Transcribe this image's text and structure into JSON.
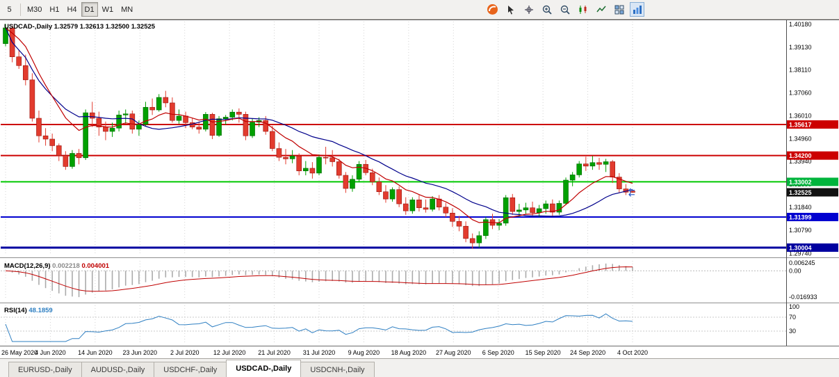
{
  "colors": {
    "up": "#00A000",
    "up_stroke": "#006600",
    "down": "#E23B2E",
    "down_stroke": "#99150F",
    "ma_fast": "#C00000",
    "ma_slow": "#00008B",
    "macd_bar": "#ABABAB",
    "macd_signal": "#C00000",
    "rsi_line": "#2E7FC2",
    "grid": "#D3D3D3",
    "arrow": "#2255CC"
  },
  "toolbar": {
    "timeframes": [
      "5",
      "M30",
      "H1",
      "H4",
      "D1",
      "W1",
      "MN"
    ],
    "active_timeframe": "D1",
    "icons": [
      "logo-icon",
      "cursor-icon",
      "crosshair-icon",
      "zoom-in-icon",
      "zoom-out-icon",
      "candles-chart-icon",
      "line-chart-icon",
      "tile-windows-icon",
      "indicators-icon"
    ],
    "pressed_icon": "indicators-icon"
  },
  "chart": {
    "title": "USDCAD-,Daily 1.32579 1.32613 1.32500 1.32525",
    "price_axis": [
      "1.40180",
      "1.39130",
      "1.38110",
      "1.37060",
      "1.36010",
      "1.34960",
      "1.33940",
      "1.32890",
      "1.31840",
      "1.30790",
      "1.29740"
    ],
    "price_tags": [
      {
        "value": "1.35617",
        "bg": "#CC0000"
      },
      {
        "value": "1.34200",
        "bg": "#CC0000"
      },
      {
        "value": "1.33002",
        "bg": "#00B43C"
      },
      {
        "value": "1.32525",
        "bg": "#111111"
      },
      {
        "value": "1.31399",
        "bg": "#0000D0"
      },
      {
        "value": "1.30004",
        "bg": "#0000A0"
      }
    ],
    "hlines": [
      {
        "value": 1.35617,
        "color": "#CC0000",
        "width": 2
      },
      {
        "value": 1.342,
        "color": "#CC0000",
        "width": 2
      },
      {
        "value": 1.33002,
        "color": "#00C800",
        "width": 2
      },
      {
        "value": 1.31399,
        "color": "#0000D0",
        "width": 2
      },
      {
        "value": 1.30004,
        "color": "#0000A0",
        "width": 3
      }
    ],
    "dates": [
      "26 May 2020",
      "4 Jun 2020",
      "14 Jun 2020",
      "23 Jun 2020",
      "2 Jul 2020",
      "12 Jul 2020",
      "21 Jul 2020",
      "31 Jul 2020",
      "9 Aug 2020",
      "18 Aug 2020",
      "27 Aug 2020",
      "6 Sep 2020",
      "15 Sep 2020",
      "24 Sep 2020",
      "4 Oct 2020"
    ]
  },
  "macd": {
    "name": "MACD(12,26,9)",
    "value_main": "0.002218",
    "value_signal": "0.004001",
    "axis": [
      "0.006245",
      "0.00",
      "-0.016933"
    ]
  },
  "rsi": {
    "name": "RSI(14)",
    "value": "48.1859",
    "axis": [
      "100",
      "70",
      "30"
    ],
    "levels": [
      70,
      30
    ]
  },
  "tabs": {
    "items": [
      "EURUSD-,Daily",
      "AUDUSD-,Daily",
      "USDCHF-,Daily",
      "USDCAD-,Daily",
      "USDCNH-,Daily"
    ],
    "active": "USDCAD-,Daily"
  },
  "chart_data": {
    "type": "candlestick",
    "symbol": "USDCAD",
    "timeframe": "Daily",
    "ohlc_display": {
      "open": "1.32579",
      "high": "1.32613",
      "low": "1.32500",
      "close": "1.32525"
    },
    "indicators": {
      "ma_fast_period": 10,
      "ma_slow_period": 20,
      "macd": [
        12,
        26,
        9
      ],
      "rsi_period": 14
    },
    "candles": [
      [
        1.393,
        1.402,
        1.3918,
        1.4002
      ],
      [
        1.4002,
        1.4012,
        1.3845,
        1.387
      ],
      [
        1.387,
        1.39,
        1.3815,
        1.383
      ],
      [
        1.383,
        1.388,
        1.374,
        1.3765
      ],
      [
        1.3765,
        1.3795,
        1.3575,
        1.359
      ],
      [
        1.359,
        1.3625,
        1.348,
        1.351
      ],
      [
        1.351,
        1.3545,
        1.3465,
        1.3495
      ],
      [
        1.3495,
        1.352,
        1.344,
        1.3465
      ],
      [
        1.3465,
        1.3475,
        1.3395,
        1.342
      ],
      [
        1.342,
        1.344,
        1.3355,
        1.337
      ],
      [
        1.337,
        1.3445,
        1.336,
        1.343
      ],
      [
        1.343,
        1.345,
        1.338,
        1.341
      ],
      [
        1.341,
        1.363,
        1.34,
        1.3615
      ],
      [
        1.3615,
        1.3665,
        1.355,
        1.359
      ],
      [
        1.359,
        1.362,
        1.351,
        1.355
      ],
      [
        1.355,
        1.3575,
        1.349,
        1.353
      ],
      [
        1.353,
        1.357,
        1.3505,
        1.3545
      ],
      [
        1.3545,
        1.3625,
        1.353,
        1.3605
      ],
      [
        1.3605,
        1.363,
        1.3565,
        1.361
      ],
      [
        1.361,
        1.3625,
        1.352,
        1.354
      ],
      [
        1.354,
        1.358,
        1.351,
        1.3562
      ],
      [
        1.3562,
        1.3665,
        1.3555,
        1.364
      ],
      [
        1.364,
        1.368,
        1.3605,
        1.3628
      ],
      [
        1.3628,
        1.37,
        1.362,
        1.3685
      ],
      [
        1.3685,
        1.3715,
        1.364,
        1.366
      ],
      [
        1.366,
        1.3685,
        1.357,
        1.358
      ],
      [
        1.358,
        1.363,
        1.3565,
        1.36
      ],
      [
        1.36,
        1.362,
        1.3545,
        1.357
      ],
      [
        1.357,
        1.359,
        1.354,
        1.355
      ],
      [
        1.355,
        1.3575,
        1.352,
        1.354
      ],
      [
        1.354,
        1.3618,
        1.353,
        1.3608
      ],
      [
        1.3608,
        1.3615,
        1.3495,
        1.3512
      ],
      [
        1.3512,
        1.36,
        1.3505,
        1.3588
      ],
      [
        1.3588,
        1.3605,
        1.356,
        1.3595
      ],
      [
        1.3595,
        1.363,
        1.358,
        1.3618
      ],
      [
        1.3618,
        1.3635,
        1.357,
        1.3608
      ],
      [
        1.3608,
        1.362,
        1.349,
        1.351
      ],
      [
        1.351,
        1.359,
        1.35,
        1.3572
      ],
      [
        1.3572,
        1.3595,
        1.355,
        1.358
      ],
      [
        1.358,
        1.36,
        1.3515,
        1.353
      ],
      [
        1.353,
        1.3555,
        1.344,
        1.3452
      ],
      [
        1.3452,
        1.348,
        1.3395,
        1.3412
      ],
      [
        1.3412,
        1.345,
        1.338,
        1.3405
      ],
      [
        1.3405,
        1.3445,
        1.3385,
        1.3418
      ],
      [
        1.3418,
        1.343,
        1.333,
        1.335
      ],
      [
        1.335,
        1.3395,
        1.333,
        1.3362
      ],
      [
        1.3362,
        1.339,
        1.3315,
        1.334
      ],
      [
        1.334,
        1.3425,
        1.333,
        1.3412
      ],
      [
        1.3412,
        1.346,
        1.338,
        1.341
      ],
      [
        1.341,
        1.3445,
        1.337,
        1.3392
      ],
      [
        1.3392,
        1.3405,
        1.3315,
        1.333
      ],
      [
        1.333,
        1.3345,
        1.325,
        1.327
      ],
      [
        1.327,
        1.333,
        1.3255,
        1.3312
      ],
      [
        1.3312,
        1.3395,
        1.33,
        1.338
      ],
      [
        1.338,
        1.34,
        1.333,
        1.3342
      ],
      [
        1.3342,
        1.336,
        1.3285,
        1.33
      ],
      [
        1.33,
        1.332,
        1.324,
        1.3255
      ],
      [
        1.3255,
        1.3285,
        1.3205,
        1.3222
      ],
      [
        1.3222,
        1.3275,
        1.321,
        1.3265
      ],
      [
        1.3265,
        1.328,
        1.3185,
        1.32
      ],
      [
        1.32,
        1.323,
        1.315,
        1.3168
      ],
      [
        1.3168,
        1.323,
        1.3155,
        1.3218
      ],
      [
        1.3218,
        1.324,
        1.3165,
        1.3182
      ],
      [
        1.3182,
        1.322,
        1.316,
        1.3175
      ],
      [
        1.3175,
        1.3235,
        1.3165,
        1.3222
      ],
      [
        1.3222,
        1.324,
        1.317,
        1.3185
      ],
      [
        1.3185,
        1.3205,
        1.314,
        1.3158
      ],
      [
        1.3158,
        1.318,
        1.3095,
        1.312
      ],
      [
        1.312,
        1.3145,
        1.3075,
        1.3098
      ],
      [
        1.3098,
        1.312,
        1.3025,
        1.3042
      ],
      [
        1.3042,
        1.3065,
        1.2995,
        1.3022
      ],
      [
        1.3022,
        1.3075,
        1.3,
        1.3055
      ],
      [
        1.3055,
        1.314,
        1.304,
        1.3128
      ],
      [
        1.3128,
        1.3155,
        1.3085,
        1.3102
      ],
      [
        1.3102,
        1.313,
        1.308,
        1.3112
      ],
      [
        1.3112,
        1.324,
        1.31,
        1.3228
      ],
      [
        1.3228,
        1.3245,
        1.315,
        1.3165
      ],
      [
        1.3165,
        1.32,
        1.314,
        1.3172
      ],
      [
        1.3172,
        1.3205,
        1.3155,
        1.3182
      ],
      [
        1.3182,
        1.321,
        1.3145,
        1.316
      ],
      [
        1.316,
        1.3195,
        1.314,
        1.3178
      ],
      [
        1.3178,
        1.3215,
        1.3155,
        1.32
      ],
      [
        1.32,
        1.322,
        1.3145,
        1.3162
      ],
      [
        1.3162,
        1.3215,
        1.315,
        1.3202
      ],
      [
        1.3202,
        1.332,
        1.3195,
        1.3308
      ],
      [
        1.3308,
        1.3345,
        1.328,
        1.3332
      ],
      [
        1.3332,
        1.3395,
        1.332,
        1.3382
      ],
      [
        1.3382,
        1.3415,
        1.335,
        1.3372
      ],
      [
        1.3372,
        1.3418,
        1.3355,
        1.3388
      ],
      [
        1.3388,
        1.341,
        1.3355,
        1.338
      ],
      [
        1.338,
        1.3405,
        1.3345,
        1.3392
      ],
      [
        1.3392,
        1.34,
        1.3295,
        1.3322
      ],
      [
        1.3322,
        1.334,
        1.325,
        1.3268
      ],
      [
        1.3268,
        1.329,
        1.324,
        1.3253
      ],
      [
        1.32579,
        1.32613,
        1.325,
        1.32525
      ]
    ]
  }
}
